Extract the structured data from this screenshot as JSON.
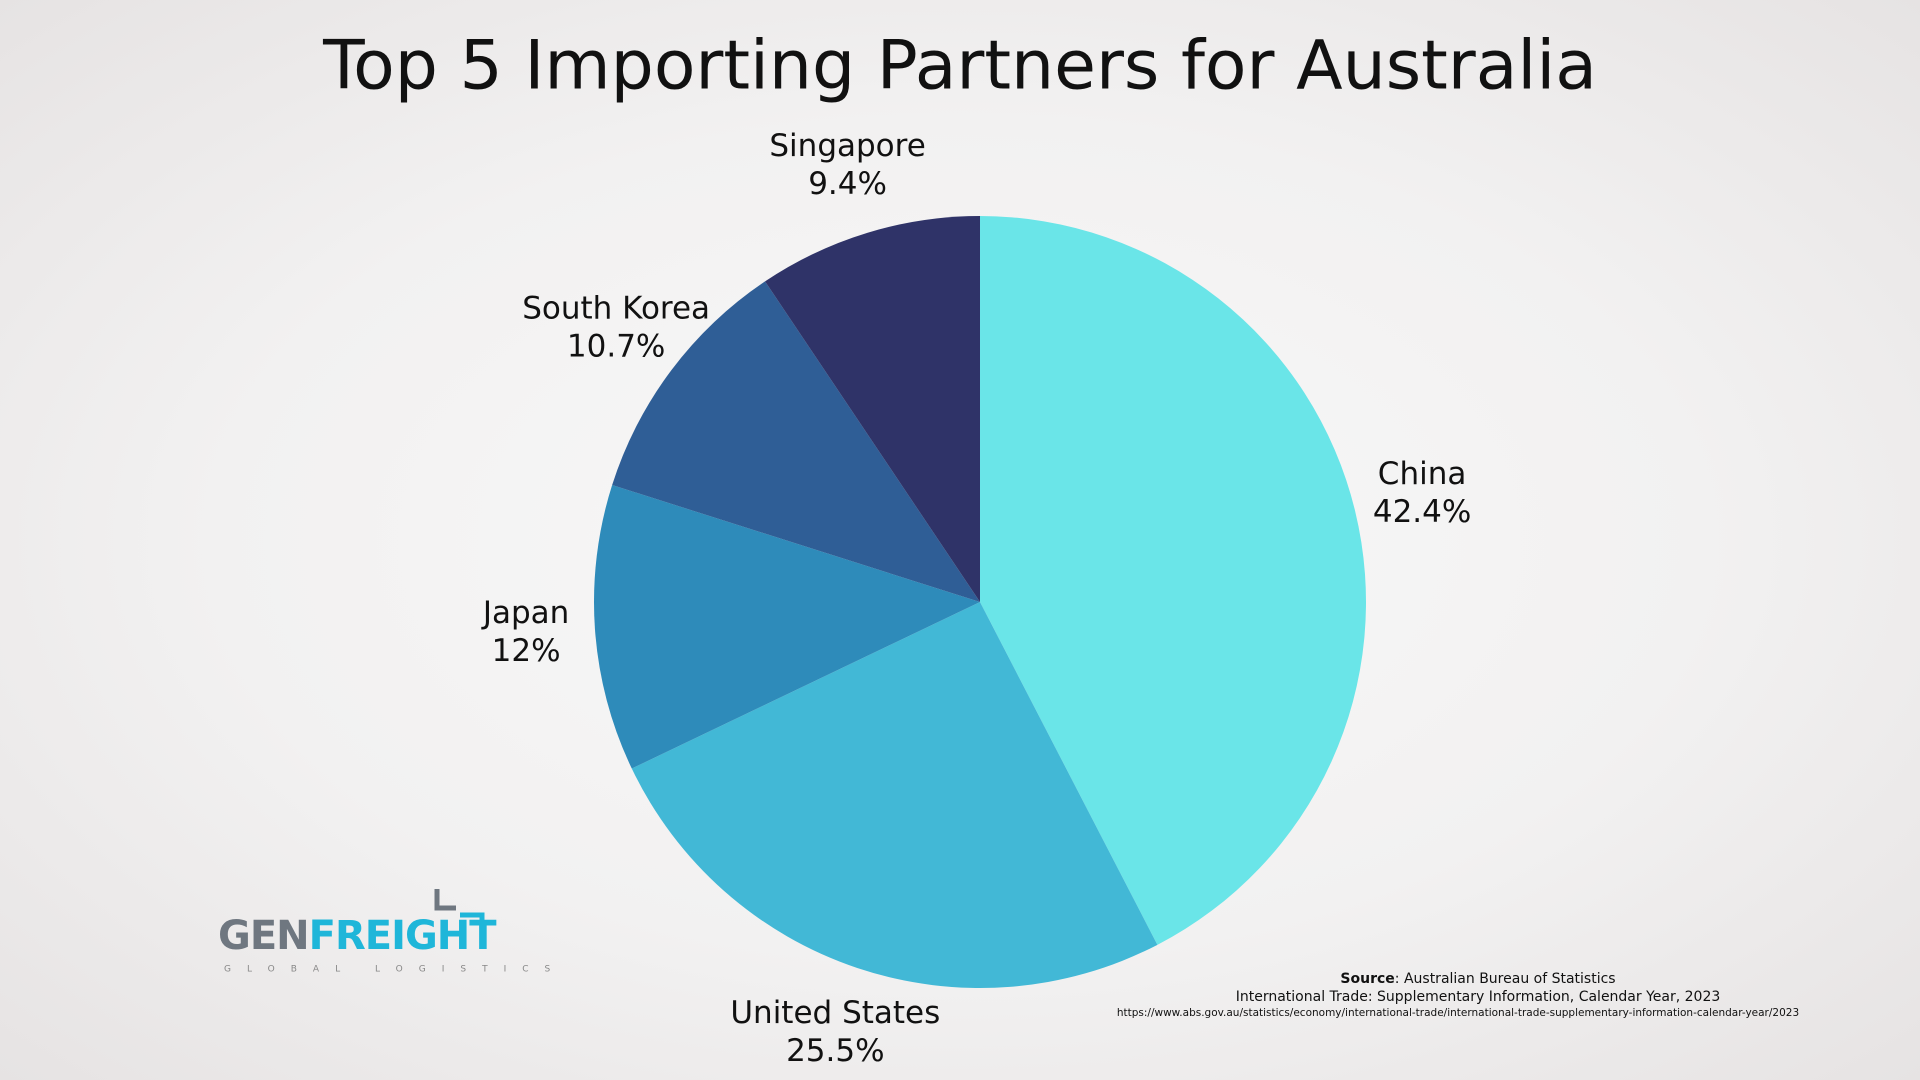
{
  "chart_data": {
    "type": "pie",
    "title": "Top 5 Importing Partners for Australia",
    "categories": [
      "China",
      "United States",
      "Japan",
      "South Korea",
      "Singapore"
    ],
    "values": [
      42.4,
      25.5,
      12,
      10.7,
      9.4
    ],
    "value_labels": [
      "42.4%",
      "25.5%",
      "12%",
      "10.7%",
      "9.4%"
    ],
    "colors": [
      "#6ae5e8",
      "#42b8d6",
      "#2e8bba",
      "#2f5e96",
      "#2f3368"
    ]
  },
  "logo": {
    "first": "GEN",
    "second": "FREIGHT",
    "tagline": "GLOBAL LOGISTICS"
  },
  "source": {
    "label": "Source",
    "text": ": Australian Bureau of Statistics",
    "detail": "International Trade: Supplementary Information, Calendar Year, 2023",
    "url": "https://www.abs.gov.au/statistics/economy/international-trade/international-trade-supplementary-information-calendar-year/2023"
  }
}
